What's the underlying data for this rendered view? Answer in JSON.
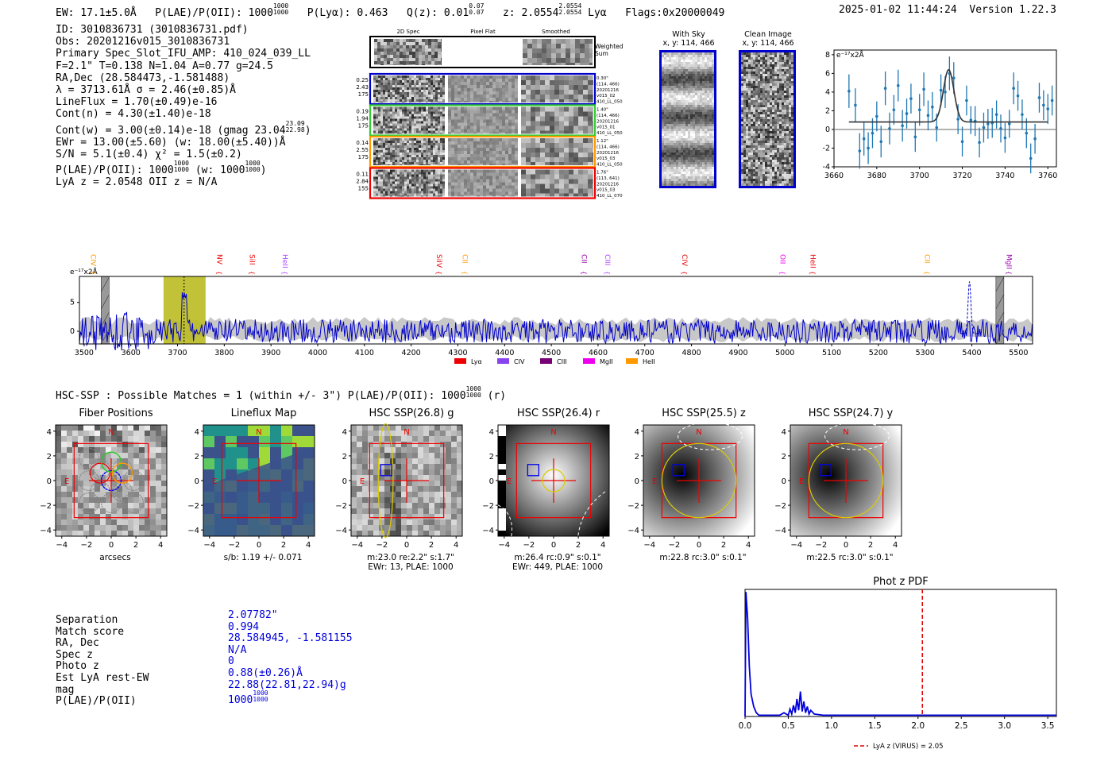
{
  "header": {
    "ew": "EW: 17.1±5.0Å",
    "plae_label": "P(LAE)/P(OII): 1000",
    "plae_frac_top": "1000",
    "plae_frac_bot": "1000",
    "plya": "P(Lyα): 0.463",
    "qz_label": "Q(z): 0.01",
    "qz_top": "0.07",
    "qz_bot": "0.07",
    "z_label": "z: 2.0554",
    "z_top": "2.0554",
    "z_bot": "2.0554",
    "z_line": "Lyα",
    "flags": "Flags:0x20000049",
    "datetime": "2025-01-02 11:44:24",
    "version": "Version 1.22.3"
  },
  "info": {
    "id": "ID: 3010836731 (3010836731.pdf)",
    "obs": "Obs: 20201216v015_3010836731",
    "primary": "Primary Spec_Slot_IFU_AMP: 410_024_039_LL",
    "fwhm": "F=2.1\"  T=0.138  N=1.04  A=0.77  g=24.5",
    "radec": "RA,Dec (28.584473,-1.581488)",
    "lambda": "λ = 3713.61Å  σ = 2.46(±0.85)Å",
    "lineflux": "LineFlux = 1.70(±0.49)e-16",
    "contn": "Cont(n) = 4.30(±1.40)e-18",
    "contw": "Cont(w) = 3.00(±0.14)e-18 (gmag 23.04",
    "contw_top": "23.09",
    "contw_bot": "22.98",
    "ewr": "EWr = 13.00(±5.60) (w: 18.00(±5.40))Å",
    "sn": "S/N = 5.1(±0.4)  χ² = 1.5(±0.2)",
    "plae": "P(LAE)/P(OII): 1000",
    "plae_top": "1000",
    "plae_bot": "1000",
    "plae_w": "(w: 1000",
    "plae_w_top": "1000",
    "plae_w_bot": "1000",
    "lyaz": "LyA z = 2.0548  OII z = N/A"
  },
  "cutouts": {
    "col_titles": [
      "2D Spec",
      "Pixel Flat",
      "Smoothed"
    ],
    "weighted": "Weighted Sum",
    "rows": [
      {
        "left": [
          "0.25",
          "2.43",
          "175"
        ],
        "right": [
          "0.30\"",
          "(114, 466)",
          "20201216",
          "v015_02",
          "410_LL_050"
        ],
        "color": "#0000cc"
      },
      {
        "left": [
          "0.19",
          "1.94",
          "175"
        ],
        "right": [
          "1.40\"",
          "(114, 466)",
          "20201216",
          "v015_01",
          "410_LL_050"
        ],
        "color": "#33cc33"
      },
      {
        "left": [
          "0.14",
          "2.55",
          "175"
        ],
        "right": [
          "1.12\"",
          "(114, 466)",
          "20201216",
          "v015_03",
          "410_LL_050"
        ],
        "color": "#ff9900"
      },
      {
        "left": [
          "0.11",
          "2.84",
          "155"
        ],
        "right": [
          "1.76\"",
          "(113, 641)",
          "20201216",
          "v015_03",
          "410_LL_070"
        ],
        "color": "#ee0000"
      }
    ]
  },
  "sky": {
    "with_sky": "With Sky",
    "with_sky_xy": "x, y: 114, 466",
    "clean": "Clean Image",
    "clean_xy": "x, y: 114, 466"
  },
  "line_fit_chart": {
    "type": "scatter",
    "ylabel": "e⁻¹⁷x2Å",
    "xlim": [
      3660,
      3764
    ],
    "ylim": [
      -4,
      8.5
    ],
    "xticks": [
      "3660",
      "3680",
      "3700",
      "3720",
      "3740",
      "3760"
    ],
    "yticks": [
      "-4",
      "-2",
      "0",
      "2",
      "4",
      "6",
      "8"
    ],
    "x": [
      3667,
      3670,
      3672,
      3674,
      3676,
      3678,
      3680,
      3682,
      3684,
      3686,
      3688,
      3690,
      3692,
      3694,
      3696,
      3698,
      3700,
      3702,
      3704,
      3706,
      3708,
      3710,
      3712,
      3714,
      3716,
      3718,
      3720,
      3722,
      3724,
      3726,
      3728,
      3730,
      3732,
      3734,
      3736,
      3738,
      3740,
      3742,
      3744,
      3746,
      3748,
      3750,
      3752,
      3754,
      3756,
      3758,
      3760,
      3762
    ],
    "y": [
      4.1,
      2.6,
      -2.3,
      -1.0,
      -2.0,
      -0.4,
      1.4,
      -1.3,
      4.4,
      0.1,
      2.1,
      4.7,
      0.4,
      1.7,
      3.3,
      -0.8,
      2.1,
      4.3,
      1.5,
      2.4,
      0.2,
      4.2,
      4.0,
      6.0,
      5.5,
      1.1,
      -1.3,
      3.1,
      1.0,
      0.9,
      -1.4,
      0.2,
      0.6,
      0.7,
      1.6,
      0.1,
      -0.9,
      0.6,
      4.4,
      3.6,
      1.6,
      -0.4,
      -3.1,
      -1.0,
      3.4,
      2.6,
      2.2,
      3.1
    ],
    "err": [
      1.8,
      1.8,
      1.9,
      1.8,
      1.7,
      1.6,
      1.6,
      1.7,
      1.8,
      1.7,
      1.6,
      1.7,
      1.7,
      1.6,
      1.6,
      1.6,
      1.7,
      1.8,
      1.6,
      1.6,
      1.5,
      1.7,
      1.7,
      1.8,
      1.7,
      1.6,
      1.6,
      1.6,
      1.5,
      1.6,
      1.6,
      1.6,
      1.6,
      1.6,
      1.5,
      1.5,
      1.6,
      1.5,
      1.7,
      1.6,
      1.6,
      1.6,
      1.6,
      1.6,
      1.6,
      1.6,
      1.6,
      1.6
    ],
    "model_center": 3713.61,
    "model_sigma": 2.46,
    "model_amp": 5.6,
    "model_cont": 0.8
  },
  "spectrum_chart": {
    "type": "line",
    "ylabel": "e⁻¹⁷x2Å",
    "xlim": [
      3490,
      5530
    ],
    "ylim": [
      -2.2,
      9.5
    ],
    "xticks": [
      "3500",
      "3600",
      "3700",
      "3800",
      "3900",
      "4000",
      "4100",
      "4200",
      "4300",
      "4400",
      "4500",
      "4600",
      "4700",
      "4800",
      "4900",
      "5000",
      "5100",
      "5200",
      "5300",
      "5400",
      "5500"
    ],
    "yticks": [
      "0",
      "5"
    ],
    "highlight": [
      3670,
      3760
    ],
    "zline": 3714,
    "gray_bars": [
      3545,
      5460
    ],
    "line_labels": [
      {
        "name": "CIV",
        "x": 3515,
        "color": "#ff9900"
      },
      {
        "name": "NV",
        "x": 3785,
        "color": "#ee0000"
      },
      {
        "name": "SiII",
        "x": 3855,
        "color": "#ee0000"
      },
      {
        "name": "HeII",
        "x": 3925,
        "color": "#aa44ff"
      },
      {
        "name": "SiIV",
        "x": 4255,
        "color": "#ee0000"
      },
      {
        "name": "CII",
        "x": 4310,
        "color": "#ff9900"
      },
      {
        "name": "CII",
        "x": 4565,
        "color": "#9900aa"
      },
      {
        "name": "CIII",
        "x": 4615,
        "color": "#aa44ff"
      },
      {
        "name": "CIV",
        "x": 4780,
        "color": "#ee0000"
      },
      {
        "name": "OII",
        "x": 4990,
        "color": "#ee00ee"
      },
      {
        "name": "HeII",
        "x": 5055,
        "color": "#ee0000"
      },
      {
        "name": "CII",
        "x": 5300,
        "color": "#ff9900"
      },
      {
        "name": "MgII",
        "x": 5475,
        "color": "#9900aa"
      }
    ],
    "legend": [
      {
        "name": "Lyα",
        "color": "#ee0000"
      },
      {
        "name": "CIV",
        "color": "#8844ee"
      },
      {
        "name": "CIII",
        "color": "#770077"
      },
      {
        "name": "MgII",
        "color": "#ee00ee"
      },
      {
        "name": "HeII",
        "color": "#ff9900"
      }
    ]
  },
  "hsc": {
    "heading": "HSC-SSP : Possible Matches = 1 (within +/- 3\")  P(LAE)/P(OII): 1000",
    "heading_top": "1000",
    "heading_bot": "1000",
    "heading_band": "(r)",
    "axis_ticks": [
      "−4",
      "−2",
      "0",
      "2",
      "4"
    ],
    "panels": [
      {
        "title": "Fiber Positions",
        "cap1": "arcsecs",
        "cap2": ""
      },
      {
        "title": "Lineflux Map",
        "cap1": "s/b: 1.19 +/- 0.071",
        "cap2": ""
      },
      {
        "title": "HSC SSP(26.8) g",
        "cap1": "m:23.0  re:2.2\"  s:1.7\"",
        "cap2": "EWr: 13, PLAE: 1000"
      },
      {
        "title": "HSC SSP(26.4) r",
        "cap1": "m:26.4 rc:0.9\"  s:0.1\"",
        "cap2": "EWr: 449, PLAE: 1000"
      },
      {
        "title": "HSC SSP(25.5) z",
        "cap1": "m:22.8 rc:3.0\"  s:0.1\"",
        "cap2": ""
      },
      {
        "title": "HSC SSP(24.7) y",
        "cap1": "m:22.5 rc:3.0\"  s:0.1\"",
        "cap2": ""
      }
    ],
    "north": "N",
    "east": "E"
  },
  "match": {
    "labels": [
      "Separation",
      "Match score",
      "RA, Dec",
      "Spec z",
      "Photo z",
      "Est LyA rest-EW",
      "mag",
      "P(LAE)/P(OII)"
    ],
    "values": [
      "2.07782\"",
      "0.994",
      "28.584945, -1.581155",
      "N/A",
      "0",
      "0.88(±0.26)Å",
      "22.88(22.81,22.94)g",
      "1000"
    ],
    "plae_top": "1000",
    "plae_bot": "1000"
  },
  "photz_chart": {
    "type": "line",
    "title": "Phot z PDF",
    "xlim": [
      0,
      3.6
    ],
    "xticks": [
      "0.0",
      "0.5",
      "1.0",
      "1.5",
      "2.0",
      "2.5",
      "3.0",
      "3.5"
    ],
    "vline": 2.05,
    "legend": "LyA z (VIRUS) = 2.05",
    "x": [
      0.0,
      0.01,
      0.03,
      0.05,
      0.07,
      0.1,
      0.13,
      0.16,
      0.2,
      0.3,
      0.4,
      0.45,
      0.5,
      0.52,
      0.54,
      0.56,
      0.58,
      0.6,
      0.62,
      0.64,
      0.66,
      0.68,
      0.7,
      0.72,
      0.74,
      0.76,
      0.8,
      0.9,
      1.0,
      1.2,
      1.5,
      2.0,
      2.5,
      3.0,
      3.6
    ],
    "y": [
      0.0,
      1.0,
      0.78,
      0.4,
      0.18,
      0.08,
      0.03,
      0.01,
      0.01,
      0.01,
      0.01,
      0.03,
      0.01,
      0.06,
      0.02,
      0.09,
      0.03,
      0.14,
      0.05,
      0.2,
      0.04,
      0.12,
      0.03,
      0.08,
      0.02,
      0.05,
      0.02,
      0.01,
      0.01,
      0.01,
      0.01,
      0.01,
      0.01,
      0.01,
      0.01
    ]
  },
  "colors": {
    "blue": "#0000dd",
    "errblue": "#1f77b4",
    "red": "#ee0000",
    "olive": "#bbbb22"
  }
}
